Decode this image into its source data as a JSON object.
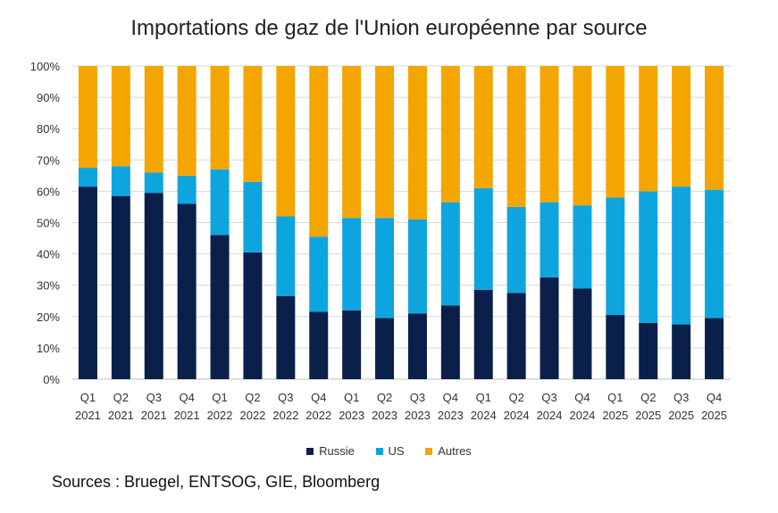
{
  "chart_data": {
    "type": "bar",
    "stacked": true,
    "title": "Importations de gaz de l'Union européenne par source",
    "categories": [
      [
        "Q1",
        "2021"
      ],
      [
        "Q2",
        "2021"
      ],
      [
        "Q3",
        "2021"
      ],
      [
        "Q4",
        "2021"
      ],
      [
        "Q1",
        "2022"
      ],
      [
        "Q2",
        "2022"
      ],
      [
        "Q3",
        "2022"
      ],
      [
        "Q4",
        "2022"
      ],
      [
        "Q1",
        "2023"
      ],
      [
        "Q2",
        "2023"
      ],
      [
        "Q3",
        "2023"
      ],
      [
        "Q4",
        "2023"
      ],
      [
        "Q1",
        "2024"
      ],
      [
        "Q2",
        "2024"
      ],
      [
        "Q3",
        "2024"
      ],
      [
        "Q4",
        "2024"
      ],
      [
        "Q1",
        "2025"
      ],
      [
        "Q2",
        "2025"
      ],
      [
        "Q3",
        "2025"
      ],
      [
        "Q4",
        "2025"
      ]
    ],
    "series": [
      {
        "name": "Russie",
        "color": "#0b1f4b",
        "values": [
          61.5,
          58.5,
          59.5,
          56,
          46,
          40.5,
          26.5,
          21.5,
          22,
          19.5,
          21,
          23.5,
          28.5,
          27.5,
          32.5,
          29,
          20.5,
          18,
          17.5,
          19.5
        ]
      },
      {
        "name": "US",
        "color": "#0ea5df",
        "values": [
          6,
          9.5,
          6.5,
          9,
          21,
          22.5,
          25.5,
          24,
          29.5,
          32,
          30,
          33,
          32.5,
          27.5,
          24,
          26.5,
          37.5,
          42,
          44,
          41
        ]
      },
      {
        "name": "Autres",
        "color": "#f5a500",
        "values": [
          32.5,
          32,
          34,
          35,
          33,
          37,
          48,
          54.5,
          48.5,
          48.5,
          49,
          43.5,
          39,
          45,
          43.5,
          44.5,
          42,
          40,
          38.5,
          39.5
        ]
      }
    ],
    "ylim": [
      0,
      100
    ],
    "yticks": [
      "0%",
      "10%",
      "20%",
      "30%",
      "40%",
      "50%",
      "60%",
      "70%",
      "80%",
      "90%",
      "100%"
    ],
    "legend_position": "bottom",
    "grid": true
  },
  "legend": {
    "items": [
      {
        "label": "Russie",
        "color": "#0b1f4b"
      },
      {
        "label": "US",
        "color": "#0ea5df"
      },
      {
        "label": "Autres",
        "color": "#f5a500"
      }
    ]
  },
  "source_note": "Sources : Bruegel, ENTSOG, GIE, Bloomberg"
}
